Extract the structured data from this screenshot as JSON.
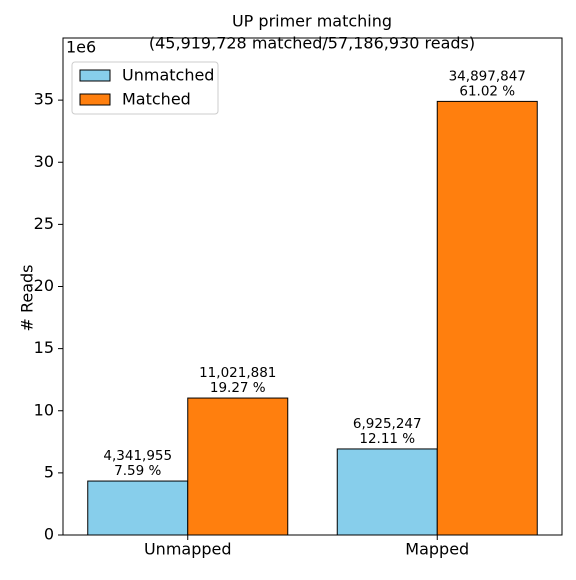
{
  "chart_data": {
    "type": "bar",
    "title": "UP primer matching",
    "subtitle": "(45,919,728 matched/57,186,930 reads)",
    "y_label": "# Reads",
    "y_offset_label": "1e6",
    "categories": [
      "Unmapped",
      "Mapped"
    ],
    "series": [
      {
        "name": "Unmatched",
        "color": "#87ceeb",
        "values": [
          4341955,
          6925247
        ],
        "value_labels": [
          "4,341,955",
          "6,925,247"
        ],
        "percents": [
          7.59,
          12.11
        ],
        "percent_labels": [
          "7.59 %",
          "12.11 %"
        ]
      },
      {
        "name": "Matched",
        "color": "#ff7f0e",
        "values": [
          11021881,
          34897847
        ],
        "value_labels": [
          "11,021,881",
          "34,897,847"
        ],
        "percents": [
          19.27,
          61.02
        ],
        "percent_labels": [
          "19.27 %",
          "61.02 %"
        ]
      }
    ],
    "ylim": [
      0,
      40000000
    ],
    "yticks": [
      {
        "value": 0,
        "label": "0"
      },
      {
        "value": 5000000,
        "label": "5"
      },
      {
        "value": 10000000,
        "label": "10"
      },
      {
        "value": 15000000,
        "label": "15"
      },
      {
        "value": 20000000,
        "label": "20"
      },
      {
        "value": 25000000,
        "label": "25"
      },
      {
        "value": 30000000,
        "label": "30"
      },
      {
        "value": 35000000,
        "label": "35"
      }
    ],
    "grid": false,
    "legend": "upper left"
  }
}
